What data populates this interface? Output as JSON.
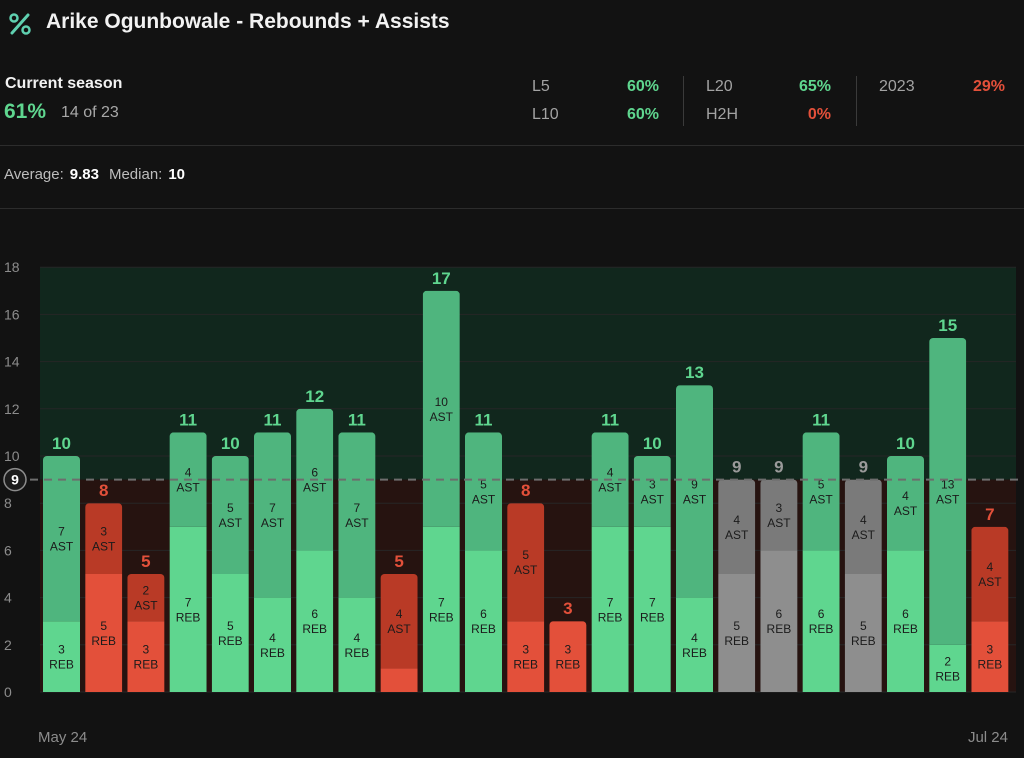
{
  "header": {
    "title": "Arike Ogunbowale - Rebounds + Assists",
    "logo_icon": "percent-icon"
  },
  "season": {
    "label": "Current season",
    "pct": "61%",
    "count": "14 of 23"
  },
  "stats": {
    "l5": {
      "label": "L5",
      "value": "60%"
    },
    "l10": {
      "label": "L10",
      "value": "60%"
    },
    "l20": {
      "label": "L20",
      "value": "65%"
    },
    "h2h": {
      "label": "H2H",
      "value": "0%"
    },
    "year": {
      "label": "2023",
      "value": "29%"
    }
  },
  "summary": {
    "average_label": "Average:",
    "average_value": "9.83",
    "median_label": "Median:",
    "median_value": "10"
  },
  "colors": {
    "over": "#5fd68f",
    "over_top": "#4fb57e",
    "under": "#e3503a",
    "under_top": "#b93a26",
    "push": "#8e8e8e",
    "push_top": "#7a7a7a",
    "line": "#6d6d6d"
  },
  "chart_data": {
    "type": "bar",
    "stacked": true,
    "line": 9,
    "ylim": [
      0,
      18
    ],
    "yticks": [
      0,
      2,
      4,
      6,
      8,
      10,
      12,
      14,
      16,
      18
    ],
    "x_start_label": "May 24",
    "x_end_label": "Jul 24",
    "series": [
      {
        "name": "REB",
        "values": [
          3,
          5,
          3,
          7,
          5,
          4,
          6,
          4,
          1,
          7,
          6,
          3,
          3,
          7,
          7,
          4,
          5,
          6,
          6,
          5,
          6,
          2,
          3
        ]
      },
      {
        "name": "AST",
        "values": [
          7,
          3,
          2,
          4,
          5,
          7,
          6,
          7,
          4,
          10,
          5,
          5,
          0,
          4,
          3,
          9,
          4,
          3,
          5,
          4,
          4,
          13,
          4
        ]
      }
    ],
    "totals": [
      10,
      8,
      5,
      11,
      10,
      11,
      12,
      11,
      5,
      17,
      11,
      8,
      3,
      11,
      10,
      13,
      9,
      9,
      11,
      9,
      10,
      15,
      7
    ]
  }
}
